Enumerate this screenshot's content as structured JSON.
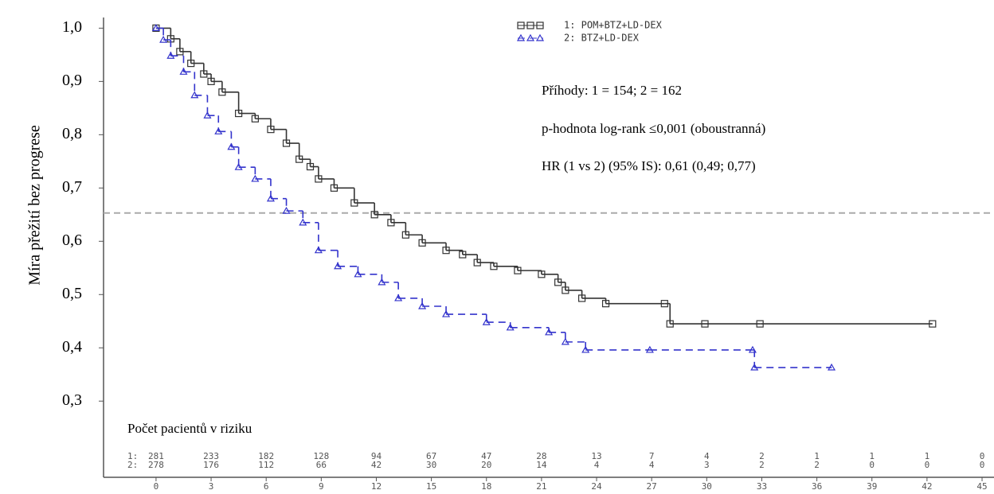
{
  "chart_data": {
    "type": "step",
    "ylabel": "Míra přežití bez progrese",
    "xlim": [
      -2.86,
      45.65
    ],
    "ylim": [
      0.157,
      1.02
    ],
    "xticks": [
      0,
      3,
      6,
      9,
      12,
      15,
      18,
      21,
      24,
      27,
      30,
      33,
      36,
      39,
      42,
      45
    ],
    "yticks": [
      {
        "value": 1.0,
        "label": "1,0"
      },
      {
        "value": 0.9,
        "label": "0,9"
      },
      {
        "value": 0.8,
        "label": "0,8"
      },
      {
        "value": 0.7,
        "label": "0,7"
      },
      {
        "value": 0.6,
        "label": "0,6"
      },
      {
        "value": 0.5,
        "label": "0,5"
      },
      {
        "value": 0.4,
        "label": "0,4"
      },
      {
        "value": 0.3,
        "label": "0,3"
      }
    ],
    "reference_line": 0.653,
    "annotations": [
      "Příhody: 1 = 154; 2 = 162",
      "p-hodnota log-rank ≤0,001 (oboustranná)",
      "HR (1 vs 2) (95% IS): 0,61 (0,49; 0,77)"
    ],
    "series": [
      {
        "name": "1: POM+BTZ+LD-DEX",
        "color": "#333333",
        "marker": "square",
        "dashed": false,
        "x": [
          0,
          0.8,
          1.3,
          1.9,
          2.6,
          3.0,
          3.6,
          4.5,
          5.4,
          6.25,
          7.1,
          7.8,
          8.4,
          8.85,
          9.7,
          10.8,
          11.9,
          12.8,
          13.6,
          14.5,
          15.8,
          16.7,
          17.5,
          18.4,
          19.7,
          21.0,
          21.9,
          22.3,
          23.2,
          24.5,
          27.7,
          28.0,
          29.9,
          32.9,
          42.3
        ],
        "values": [
          1.0,
          0.98,
          0.956,
          0.934,
          0.914,
          0.9,
          0.88,
          0.84,
          0.83,
          0.81,
          0.784,
          0.754,
          0.74,
          0.717,
          0.7,
          0.672,
          0.65,
          0.635,
          0.612,
          0.597,
          0.583,
          0.575,
          0.56,
          0.553,
          0.545,
          0.538,
          0.523,
          0.508,
          0.493,
          0.483,
          0.483,
          0.445,
          0.445,
          0.445,
          0.445
        ]
      },
      {
        "name": "2: BTZ+LD-DEX",
        "color": "#3333cc",
        "marker": "triangle",
        "dashed": true,
        "x": [
          0,
          0.4,
          0.8,
          1.5,
          2.1,
          2.8,
          3.4,
          4.1,
          4.5,
          5.4,
          6.25,
          7.1,
          8.0,
          8.85,
          9.9,
          11.0,
          12.3,
          13.2,
          14.5,
          15.8,
          18.0,
          19.3,
          21.4,
          22.3,
          23.4,
          26.9,
          32.5,
          32.6,
          36.8
        ],
        "values": [
          1.0,
          0.978,
          0.948,
          0.918,
          0.874,
          0.836,
          0.806,
          0.777,
          0.739,
          0.717,
          0.68,
          0.657,
          0.635,
          0.583,
          0.553,
          0.538,
          0.523,
          0.493,
          0.478,
          0.463,
          0.448,
          0.438,
          0.429,
          0.411,
          0.396,
          0.396,
          0.396,
          0.363,
          0.363
        ]
      }
    ],
    "risk_table": {
      "title": "Počet pacientů v riziku",
      "rows": [
        {
          "label": "1:",
          "counts": [
            281,
            233,
            182,
            128,
            94,
            67,
            47,
            28,
            13,
            7,
            4,
            2,
            1,
            1,
            1,
            0
          ]
        },
        {
          "label": "2:",
          "counts": [
            278,
            176,
            112,
            66,
            42,
            30,
            20,
            14,
            4,
            4,
            3,
            2,
            2,
            0,
            0,
            0
          ]
        }
      ]
    }
  }
}
